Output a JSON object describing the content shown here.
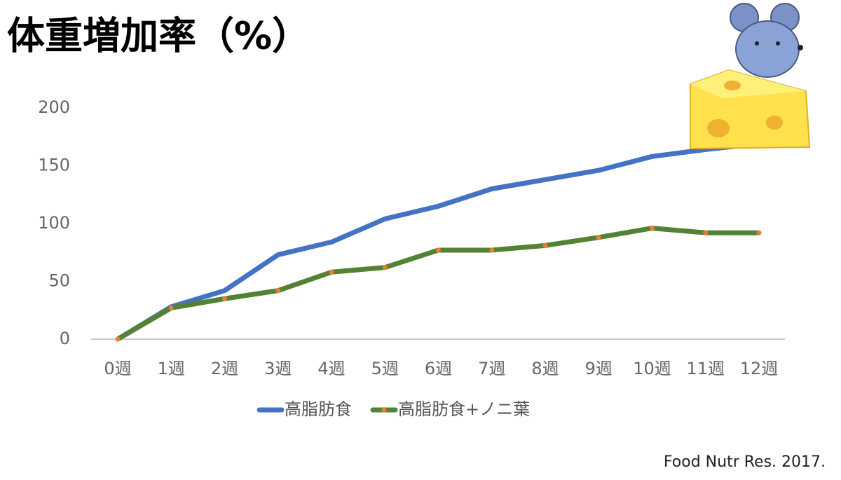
{
  "chart_data": {
    "type": "line",
    "title": "体重増加率（%）",
    "source": "Food Nutr Res. 2017.",
    "categories": [
      "0週",
      "1週",
      "2週",
      "3週",
      "4週",
      "5週",
      "6週",
      "7週",
      "8週",
      "9週",
      "10週",
      "11週",
      "12週"
    ],
    "series": [
      {
        "name": "高脂肪食",
        "color": "#4472c4",
        "values": [
          0,
          28,
          42,
          73,
          84,
          104,
          115,
          130,
          138,
          146,
          158,
          164,
          169
        ]
      },
      {
        "name": "高脂肪食+ノニ葉",
        "color": "#548235",
        "marker_color": "#ed7d31",
        "values": [
          0,
          27,
          35,
          42,
          58,
          62,
          77,
          77,
          81,
          88,
          96,
          92,
          92
        ]
      }
    ],
    "ylim": [
      0,
      200
    ],
    "yticks": [
      0,
      50,
      100,
      150,
      200
    ],
    "grid": false,
    "legend": "bottom"
  }
}
